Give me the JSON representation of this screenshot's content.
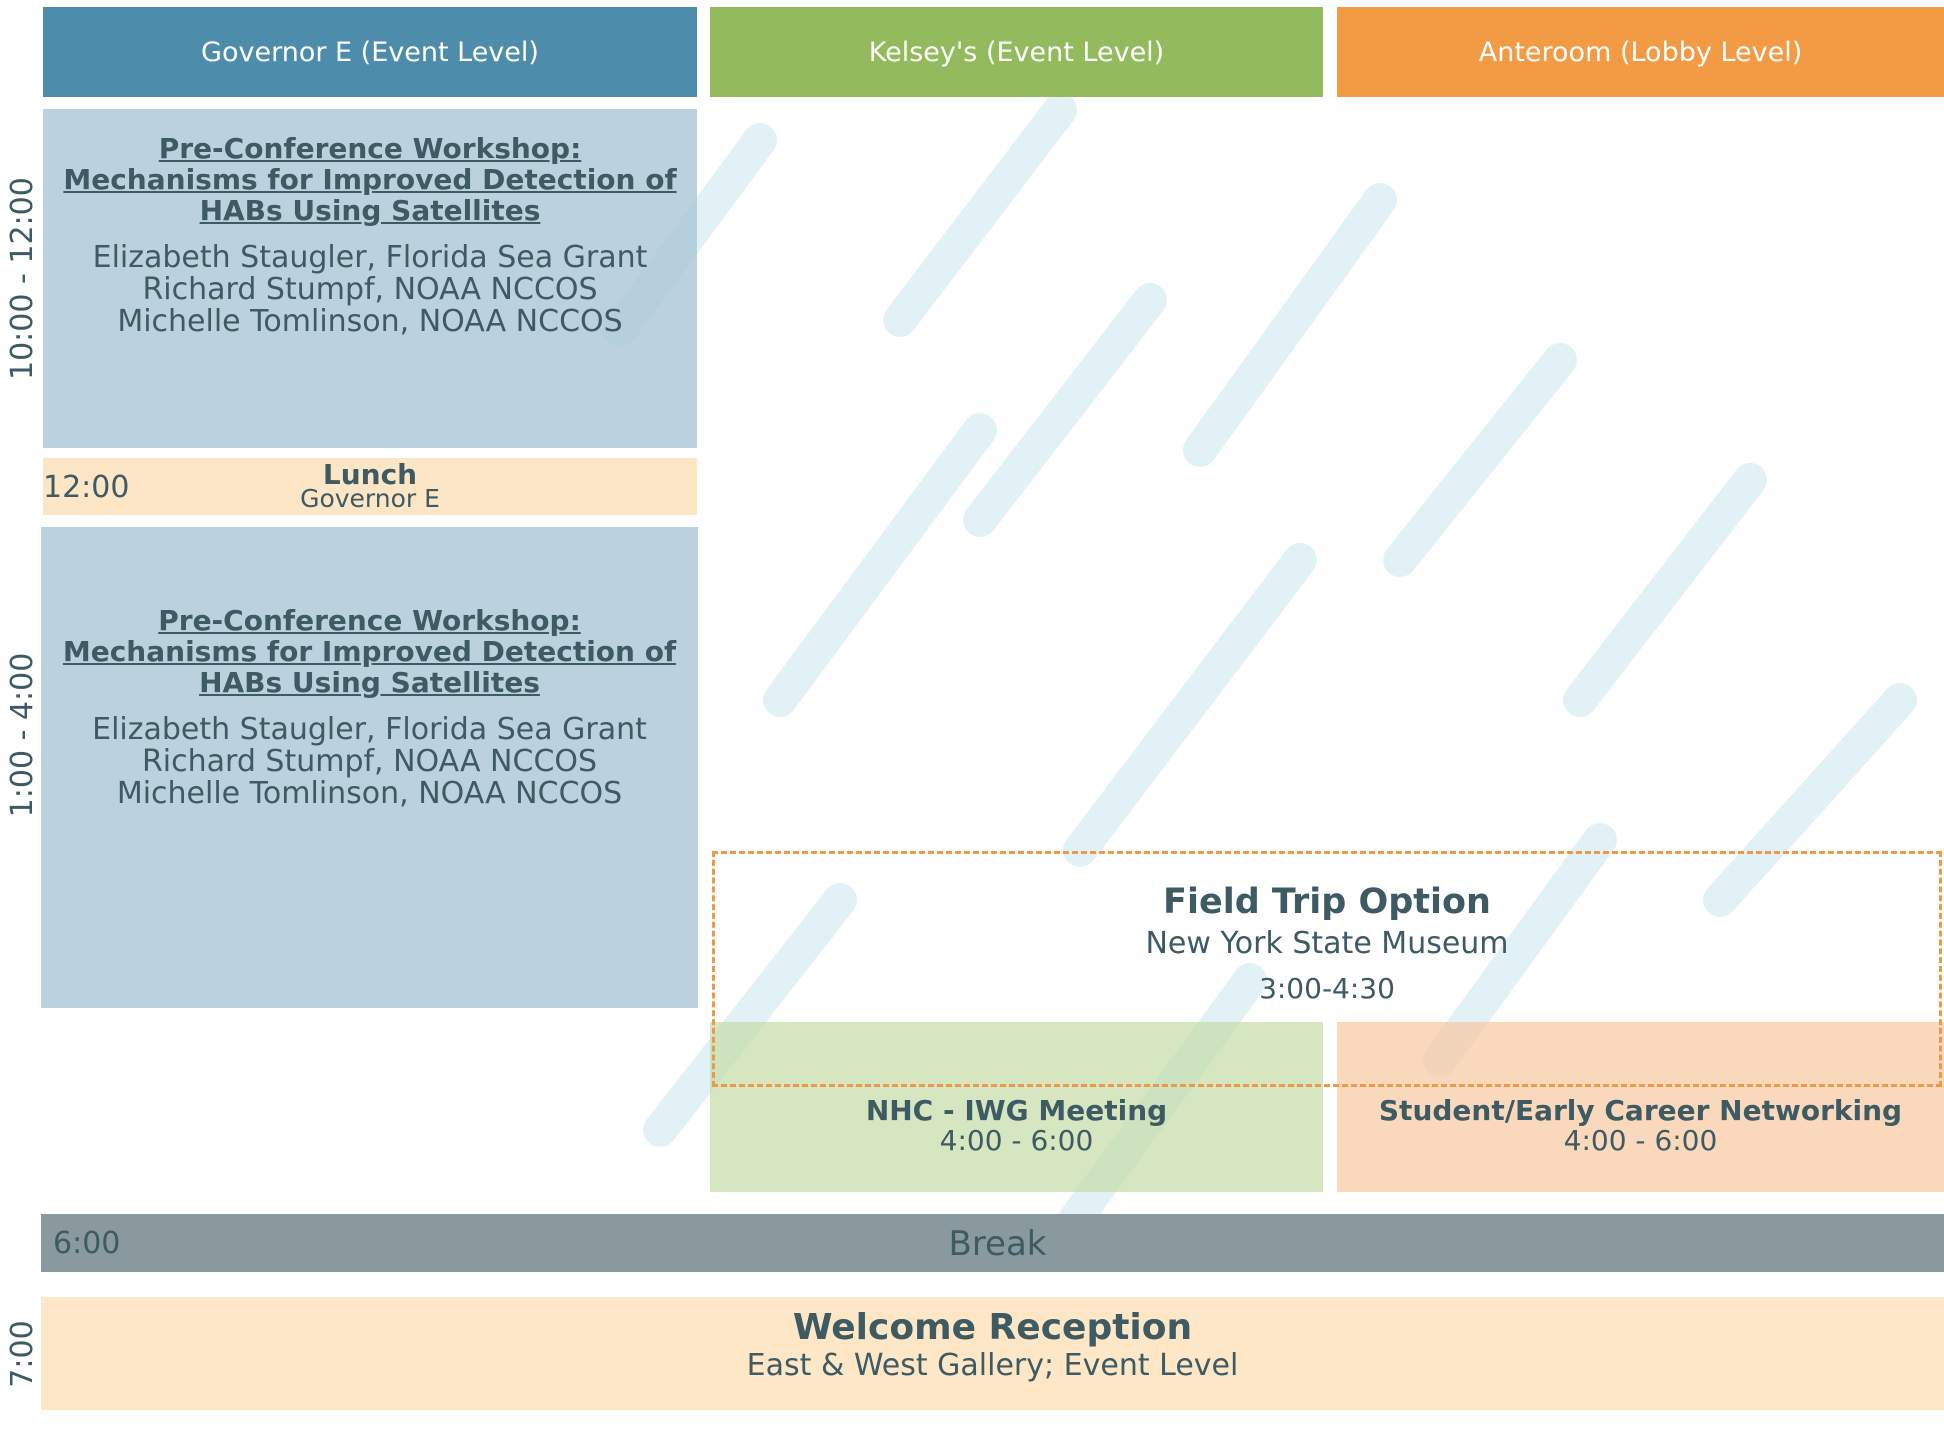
{
  "headers": [
    "Governor E (Event Level)",
    "Kelsey's (Event Level)",
    "Anteroom (Lobby Level)"
  ],
  "time_labels": [
    "10:00 - 12:00",
    "1:00 - 4:00",
    "7:00"
  ],
  "workshop_morning": {
    "title_lines": [
      "Pre-Conference Workshop:",
      "Mechanisms for Improved Detection of",
      "HABs Using Satellites"
    ],
    "speakers": [
      "Elizabeth Staugler, Florida Sea Grant",
      "Richard Stumpf, NOAA NCCOS",
      "Michelle Tomlinson, NOAA NCCOS"
    ]
  },
  "lunch": {
    "time": "12:00",
    "title": "Lunch",
    "location": "Governor E"
  },
  "workshop_afternoon": {
    "title_lines": [
      "Pre-Conference Workshop:",
      "Mechanisms for Improved Detection of",
      "HABs Using Satellites"
    ],
    "speakers": [
      "Elizabeth Staugler, Florida Sea Grant",
      "Richard Stumpf, NOAA NCCOS",
      "Michelle Tomlinson, NOAA NCCOS"
    ]
  },
  "field_trip": {
    "title": "Field Trip Option",
    "location": "New York State Museum",
    "time": "3:00-4:30"
  },
  "nhc_meeting": {
    "title": "NHC - IWG Meeting",
    "time": "4:00 - 6:00"
  },
  "networking": {
    "title": "Student/Early Career Networking",
    "time": "4:00 - 6:00"
  },
  "break": {
    "time": "6:00",
    "title": "Break"
  },
  "reception": {
    "title": "Welcome Reception",
    "location": "East & West Gallery; Event Level"
  }
}
